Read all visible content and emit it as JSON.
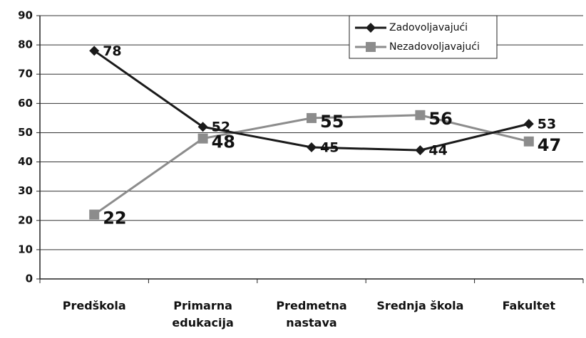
{
  "chart_data": {
    "type": "line",
    "categories": [
      "Predškola",
      "Primarna edukacija",
      "Predmetna nastava",
      "Srednja škola",
      "Fakultet"
    ],
    "series": [
      {
        "name": "Zadovoljavajući",
        "color": "#1a1a1a",
        "marker": "diamond",
        "values": [
          78,
          52,
          45,
          44,
          53
        ]
      },
      {
        "name": "Nezadovoljavajući",
        "color": "#8c8c8c",
        "marker": "square",
        "values": [
          22,
          48,
          55,
          56,
          47
        ]
      }
    ],
    "ylim": [
      0,
      90
    ],
    "yticks": [
      0,
      10,
      20,
      30,
      40,
      50,
      60,
      70,
      80,
      90
    ],
    "grid": true,
    "legend": "upper right"
  }
}
